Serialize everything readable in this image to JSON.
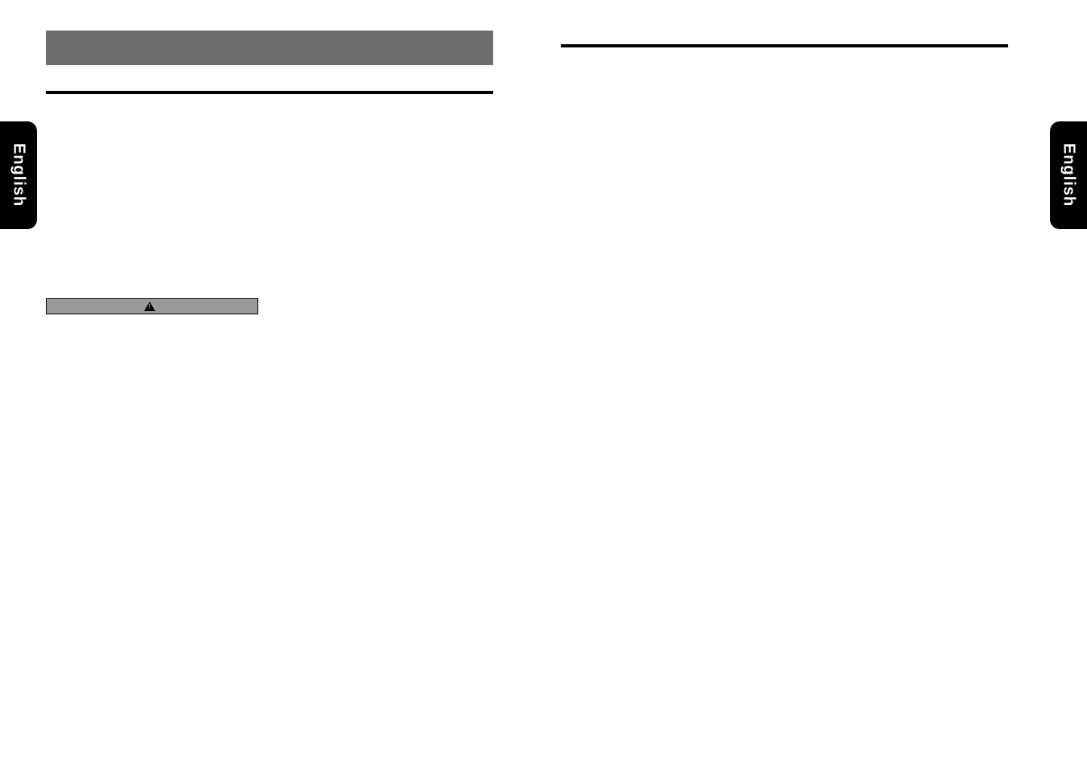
{
  "lang_tab": {
    "label": "English"
  },
  "left_page": {
    "section_bar_label": "",
    "heading_1": "",
    "body_1": "",
    "warning_label": "",
    "body_2": ""
  },
  "right_page": {
    "heading_1": "",
    "body_1": ""
  },
  "colors": {
    "section_bar_bg": "#6e6e6e",
    "warning_bg": "#9a9a9a",
    "tab_bg": "#000000",
    "tab_fg": "#ffffff",
    "page_bg": "#ffffff",
    "rule": "#000000"
  }
}
